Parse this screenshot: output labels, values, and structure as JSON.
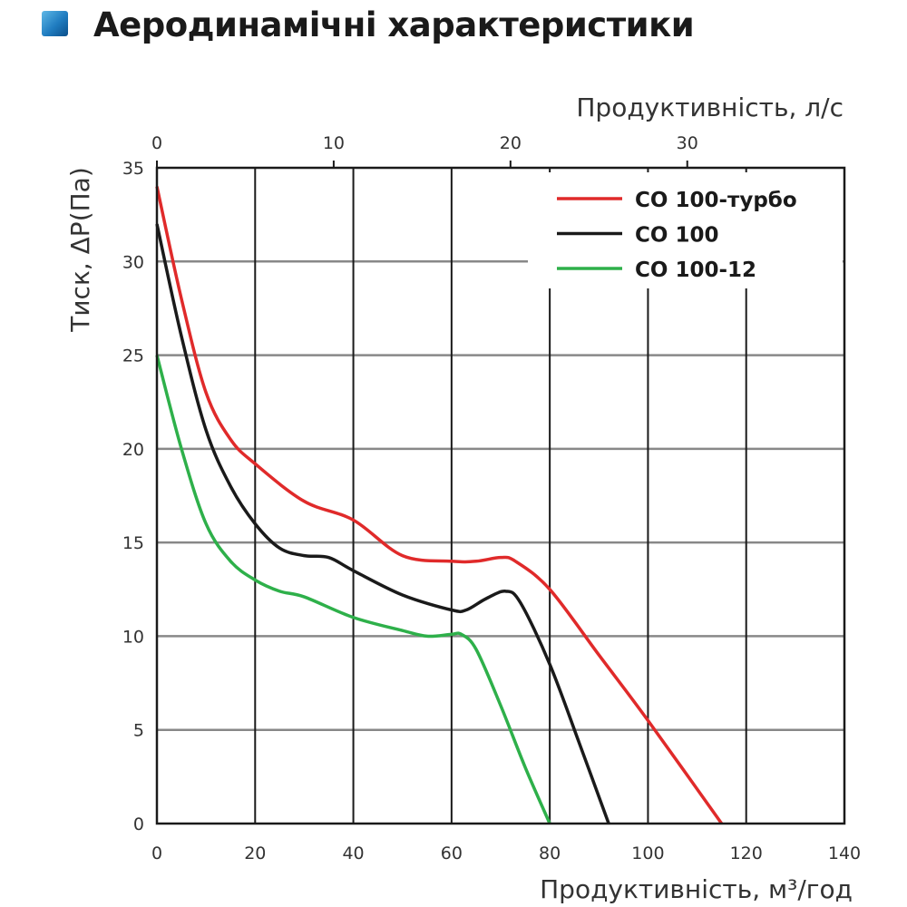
{
  "header": {
    "title": "Аеродинамічні характеристики",
    "icon": "blue-square-icon"
  },
  "chart_data": {
    "type": "line",
    "title": "Аеродинамічні характеристики",
    "xlabel": "Продуктивність, м³/год",
    "x2label": "Продуктивність, л/с",
    "ylabel": "Тиск, ΔP(Па)",
    "xlim": [
      0,
      140
    ],
    "ylim": [
      0,
      35
    ],
    "x2lim": [
      0,
      38.9
    ],
    "xticks": [
      "0",
      "20",
      "40",
      "60",
      "80",
      "100",
      "120",
      "140"
    ],
    "yticks": [
      "0",
      "5",
      "10",
      "15",
      "20",
      "25",
      "30",
      "35"
    ],
    "x2ticks": [
      "0",
      "10",
      "20",
      "30"
    ],
    "grid": true,
    "legend_position": "top-right",
    "series": [
      {
        "name": "СО 100-турбо",
        "color": "#e02a2a",
        "x": [
          0,
          5,
          10,
          15,
          20,
          30,
          40,
          50,
          60,
          65,
          70,
          73,
          80,
          90,
          100,
          115
        ],
        "y": [
          34,
          28,
          23,
          20.5,
          19.2,
          17.2,
          16.2,
          14.3,
          14,
          14,
          14.2,
          14,
          12.5,
          9,
          5.5,
          0
        ]
      },
      {
        "name": "СО 100",
        "color": "#1a1a1a",
        "x": [
          0,
          5,
          10,
          15,
          20,
          25,
          30,
          35,
          40,
          50,
          60,
          63,
          67,
          71,
          74,
          80,
          86,
          92
        ],
        "y": [
          32,
          26,
          21,
          18,
          16,
          14.7,
          14.3,
          14.2,
          13.5,
          12.2,
          11.4,
          11.4,
          12,
          12.4,
          11.8,
          8.5,
          4.3,
          0
        ]
      },
      {
        "name": "СО 100-12",
        "color": "#2eb04a",
        "x": [
          0,
          5,
          10,
          15,
          20,
          25,
          30,
          40,
          50,
          55,
          60,
          62,
          65,
          70,
          75,
          80
        ],
        "y": [
          25,
          20,
          16,
          14,
          13,
          12.4,
          12.1,
          11,
          10.3,
          10,
          10.1,
          10.1,
          9.3,
          6.3,
          3,
          0
        ]
      }
    ]
  }
}
